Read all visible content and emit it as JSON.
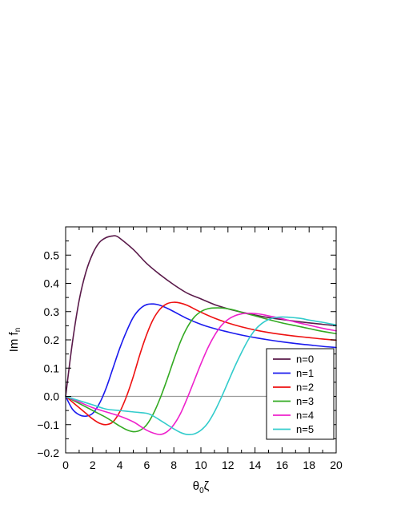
{
  "chart_data": {
    "type": "line",
    "ylabel_main": "Im f",
    "ylabel_sub": "n",
    "xlabel_theta": "θ",
    "xlabel_sub": "0",
    "xlabel_zeta": "ζ",
    "xlim": [
      0,
      20
    ],
    "ylim": [
      -0.2,
      0.6
    ],
    "grid": false,
    "legend_position": "bottom-right",
    "x_ticks": [
      0,
      2,
      4,
      6,
      8,
      10,
      12,
      14,
      16,
      18,
      20
    ],
    "x_tick_labels": [
      "0",
      "2",
      "4",
      "6",
      "8",
      "10",
      "12",
      "14",
      "16",
      "18",
      "20"
    ],
    "y_ticks": [
      -0.2,
      -0.1,
      0.0,
      0.1,
      0.2,
      0.3,
      0.4,
      0.5
    ],
    "y_tick_labels": [
      "−0.2",
      "−0.1",
      "0.0",
      "0.1",
      "0.2",
      "0.3",
      "0.4",
      "0.5"
    ],
    "zero_line": true,
    "series": [
      {
        "name": "n=0",
        "color": "#5a1a4a",
        "x": [
          0,
          0.5,
          1,
          1.5,
          2,
          2.5,
          3,
          3.5,
          3.7,
          4,
          5,
          6,
          7,
          8,
          9,
          10,
          11,
          12,
          13,
          14,
          15,
          16,
          17,
          18,
          19,
          20
        ],
        "y": [
          0,
          0.19,
          0.34,
          0.44,
          0.505,
          0.545,
          0.562,
          0.568,
          0.568,
          0.56,
          0.52,
          0.47,
          0.43,
          0.395,
          0.365,
          0.345,
          0.325,
          0.31,
          0.298,
          0.288,
          0.279,
          0.272,
          0.266,
          0.26,
          0.255,
          0.25
        ]
      },
      {
        "name": "n=1",
        "color": "#1a1aee",
        "x": [
          0,
          0.5,
          1,
          1.5,
          2,
          2.5,
          3,
          3.5,
          4,
          4.5,
          5,
          5.5,
          6,
          6.5,
          7,
          7.5,
          8,
          9,
          10,
          11,
          12,
          13,
          14,
          15,
          16,
          17,
          18,
          19,
          20
        ],
        "y": [
          0,
          -0.045,
          -0.065,
          -0.07,
          -0.06,
          -0.025,
          0.03,
          0.1,
          0.17,
          0.23,
          0.28,
          0.31,
          0.325,
          0.327,
          0.322,
          0.312,
          0.3,
          0.275,
          0.255,
          0.24,
          0.228,
          0.217,
          0.208,
          0.2,
          0.193,
          0.187,
          0.182,
          0.177,
          0.173
        ]
      },
      {
        "name": "n=2",
        "color": "#ee1111",
        "x": [
          0,
          0.5,
          1,
          1.5,
          2,
          2.5,
          3,
          3.5,
          4,
          4.5,
          5,
          5.5,
          6,
          6.5,
          7,
          7.5,
          8,
          8.5,
          9,
          9.5,
          10,
          11,
          12,
          13,
          14,
          15,
          16,
          17,
          18,
          19,
          20
        ],
        "y": [
          0,
          -0.02,
          -0.04,
          -0.06,
          -0.08,
          -0.095,
          -0.1,
          -0.09,
          -0.055,
          0.0,
          0.07,
          0.15,
          0.22,
          0.275,
          0.31,
          0.328,
          0.333,
          0.33,
          0.322,
          0.31,
          0.298,
          0.277,
          0.26,
          0.246,
          0.235,
          0.226,
          0.219,
          0.213,
          0.208,
          0.203,
          0.199
        ]
      },
      {
        "name": "n=3",
        "color": "#33aa22",
        "x": [
          0,
          1,
          2,
          3,
          3.5,
          4,
          4.5,
          5,
          5.5,
          6,
          6.5,
          7,
          7.5,
          8,
          8.5,
          9,
          9.5,
          10,
          10.5,
          11,
          11.5,
          12,
          12.5,
          13,
          14,
          15,
          16,
          17,
          18,
          19,
          20
        ],
        "y": [
          0,
          -0.025,
          -0.05,
          -0.075,
          -0.09,
          -0.105,
          -0.118,
          -0.125,
          -0.12,
          -0.1,
          -0.06,
          -0.005,
          0.06,
          0.13,
          0.195,
          0.245,
          0.28,
          0.3,
          0.31,
          0.313,
          0.313,
          0.31,
          0.305,
          0.298,
          0.285,
          0.272,
          0.26,
          0.25,
          0.24,
          0.23,
          0.222
        ]
      },
      {
        "name": "n=4",
        "color": "#ee22cc",
        "x": [
          0,
          1,
          2,
          3,
          4,
          5,
          5.5,
          6,
          6.5,
          7,
          7.5,
          8,
          8.5,
          9,
          9.5,
          10,
          10.5,
          11,
          11.5,
          12,
          12.5,
          13,
          13.5,
          14,
          14.5,
          15,
          16,
          17,
          18,
          19,
          20
        ],
        "y": [
          0,
          -0.02,
          -0.04,
          -0.055,
          -0.07,
          -0.09,
          -0.105,
          -0.12,
          -0.13,
          -0.135,
          -0.125,
          -0.1,
          -0.06,
          -0.005,
          0.055,
          0.115,
          0.17,
          0.215,
          0.25,
          0.272,
          0.285,
          0.292,
          0.294,
          0.293,
          0.29,
          0.285,
          0.275,
          0.263,
          0.252,
          0.241,
          0.232
        ]
      },
      {
        "name": "n=5",
        "color": "#33cccc",
        "x": [
          0,
          1,
          2,
          3,
          4,
          5,
          6,
          6.5,
          7,
          7.5,
          8,
          8.5,
          9,
          9.5,
          10,
          10.5,
          11,
          11.5,
          12,
          12.5,
          13,
          13.5,
          14,
          14.5,
          15,
          15.5,
          16,
          16.5,
          17,
          17.5,
          18,
          19,
          20
        ],
        "y": [
          0,
          -0.015,
          -0.03,
          -0.045,
          -0.05,
          -0.055,
          -0.06,
          -0.07,
          -0.085,
          -0.1,
          -0.115,
          -0.128,
          -0.135,
          -0.133,
          -0.12,
          -0.095,
          -0.055,
          -0.005,
          0.05,
          0.105,
          0.155,
          0.2,
          0.235,
          0.258,
          0.272,
          0.279,
          0.281,
          0.28,
          0.278,
          0.275,
          0.27,
          0.262,
          0.253
        ]
      }
    ],
    "reference_line_color": "#999999"
  }
}
